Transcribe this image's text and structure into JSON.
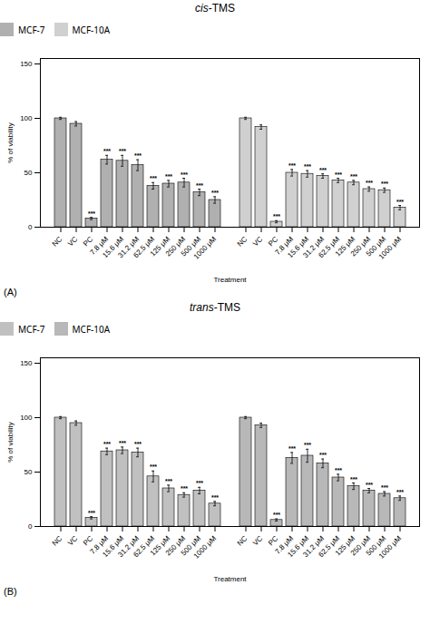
{
  "chart_data": [
    {
      "type": "bar",
      "title": "cis-TMS",
      "annotation": "(A)",
      "xlabel": "Treatment",
      "ylabel": "% of viability",
      "categories": [
        "NC",
        "VC",
        "PC",
        "7.8 μM",
        "15.6 μM",
        "31.2 μM",
        "62.5 μM",
        "125 μM",
        "250 μM",
        "500 μM",
        "1000 μM"
      ],
      "series": [
        {
          "name": "MCF-7",
          "color": "#b0b0b0",
          "values": [
            100,
            95,
            8,
            62,
            61,
            57,
            38,
            40,
            41,
            32,
            25
          ],
          "errors": [
            1,
            2,
            1,
            4,
            5,
            5,
            3,
            3,
            4,
            3,
            3
          ],
          "significance": [
            null,
            null,
            "***",
            "***",
            "***",
            "***",
            "***",
            "***",
            "***",
            "***",
            "***"
          ]
        },
        {
          "name": "MCF-10A",
          "color": "#d0d0d0",
          "values": [
            100,
            92,
            5,
            50,
            49,
            47,
            43,
            41,
            35,
            34,
            18
          ],
          "errors": [
            1,
            2,
            1,
            3,
            3,
            2,
            2,
            2,
            2,
            2,
            2
          ],
          "significance": [
            null,
            null,
            "***",
            "***",
            "***",
            "***",
            "***",
            "***",
            "***",
            "***",
            "***"
          ]
        }
      ],
      "ylim": [
        0,
        155
      ],
      "yticks": [
        0,
        50,
        100,
        150
      ]
    },
    {
      "type": "bar",
      "title": "trans-TMS",
      "annotation": "(B)",
      "xlabel": "Treatment",
      "ylabel": "% of viability",
      "categories": [
        "NC",
        "VC",
        "PC",
        "7.8 μM",
        "15.6 μM",
        "31.2 μM",
        "62.5 μM",
        "125 μM",
        "250 μM",
        "500 μM",
        "1000 μM"
      ],
      "series": [
        {
          "name": "MCF-7",
          "color": "#c0c0c0",
          "values": [
            100,
            95,
            8,
            69,
            70,
            68,
            46,
            35,
            29,
            33,
            21
          ],
          "errors": [
            1,
            2,
            1,
            3,
            3,
            4,
            5,
            3,
            2,
            3,
            2
          ],
          "significance": [
            null,
            null,
            "***",
            "***",
            "***",
            "***",
            "***",
            "***",
            "***",
            "***",
            "***"
          ]
        },
        {
          "name": "MCF-10A",
          "color": "#b8b8b8",
          "values": [
            100,
            93,
            6,
            63,
            65,
            58,
            45,
            37,
            33,
            30,
            26
          ],
          "errors": [
            1,
            2,
            1,
            5,
            6,
            4,
            3,
            3,
            2,
            2,
            2
          ],
          "significance": [
            null,
            null,
            "***",
            "***",
            "***",
            "***",
            "***",
            "***",
            "***",
            "***",
            "***"
          ]
        }
      ],
      "ylim": [
        0,
        155
      ],
      "yticks": [
        0,
        50,
        100,
        150
      ]
    }
  ]
}
